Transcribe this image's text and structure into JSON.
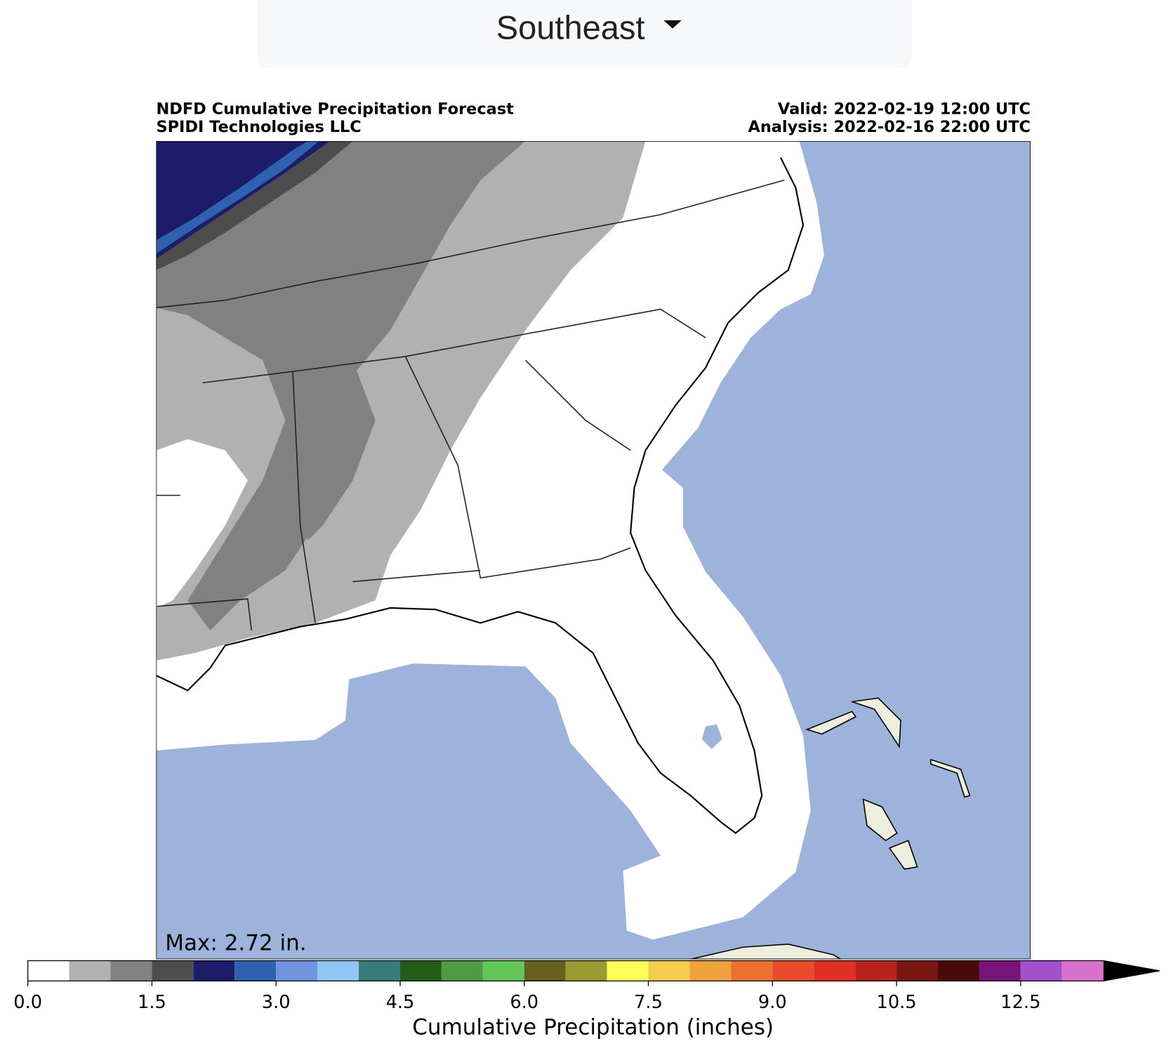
{
  "dropdown": {
    "label": "Southeast"
  },
  "map": {
    "title": "NDFD Cumulative Precipitation Forecast",
    "subtitle": "SPIDI Technologies LLC",
    "valid": "Valid: 2022-02-19 12:00 UTC",
    "analysis": "Analysis: 2022-02-16 22:00 UTC",
    "max_label": "Max: 2.72 in."
  },
  "colorbar": {
    "label": "Cumulative Precipitation (inches)",
    "bins": [
      0,
      0.5,
      1,
      1.5,
      2,
      2.5,
      3,
      3.5,
      4,
      4.5,
      5,
      5.5,
      6,
      6.5,
      7,
      7.5,
      8,
      8.5,
      9,
      9.5,
      10,
      10.5,
      11,
      11.5,
      12.5,
      13,
      13.5
    ],
    "colors": [
      "#ffffff",
      "#b1b1b1",
      "#818181",
      "#4d4d4d",
      "#1c1c6b",
      "#2e61b0",
      "#7094e0",
      "#8fc6f4",
      "#387c7c",
      "#225e18",
      "#4f9a42",
      "#63c757",
      "#64601e",
      "#9a9a30",
      "#fdfd5a",
      "#f4cd4e",
      "#f0a23c",
      "#ec702e",
      "#e84c2c",
      "#e03024",
      "#b8221e",
      "#7a1612",
      "#4a0a0a",
      "#781478",
      "#a152ca",
      "#d872cc"
    ],
    "extend_color": "#000000",
    "ticks": [
      {
        "value": 0,
        "label": "0.0"
      },
      1.5,
      {
        "value": 3,
        "label": "3.0"
      },
      4.5,
      {
        "value": 6,
        "label": "6.0"
      },
      7.5,
      {
        "value": 9,
        "label": "9.0"
      },
      10.5,
      12.5
    ]
  }
}
